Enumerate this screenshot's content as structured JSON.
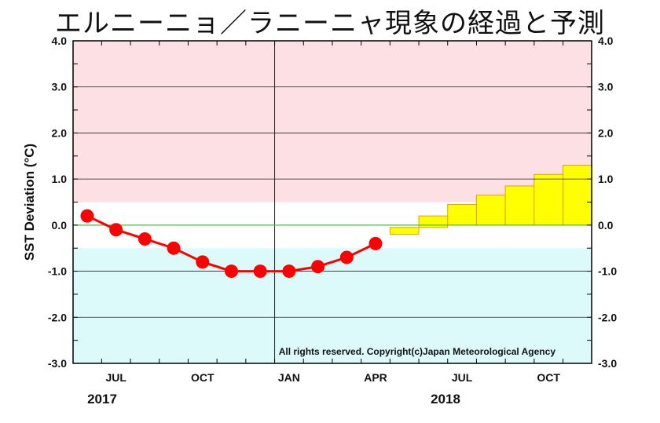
{
  "chart_data": {
    "type": "line",
    "title": "エルニーニョ／ラニーニャ現象の経過と予測",
    "ylabel": "SST Deviation (°C)",
    "ylim": [
      -3.0,
      4.0
    ],
    "yticks": [
      "4.0",
      "3.0",
      "2.0",
      "1.0",
      "0.0",
      "-1.0",
      "-2.0",
      "-3.0"
    ],
    "month_ticks": [
      "JUL",
      "OCT",
      "JAN",
      "APR",
      "JUL",
      "OCT"
    ],
    "years": [
      "2017",
      "2018"
    ],
    "copyright": "All rights reserved. Copyright(c)Japan Meteorological Agency",
    "observed": {
      "months": [
        "2017-06",
        "2017-07",
        "2017-08",
        "2017-09",
        "2017-10",
        "2017-11",
        "2017-12",
        "2018-01",
        "2018-02",
        "2018-03",
        "2018-04"
      ],
      "values": [
        0.2,
        -0.1,
        -0.3,
        -0.5,
        -0.8,
        -1.0,
        -1.0,
        -1.0,
        -0.9,
        -0.7,
        -0.4
      ]
    },
    "forecast": {
      "months": [
        "2018-05",
        "2018-06",
        "2018-07",
        "2018-08",
        "2018-09",
        "2018-10",
        "2018-11"
      ],
      "low": [
        -0.2,
        -0.05,
        0.0,
        0.0,
        0.0,
        0.0,
        0.0
      ],
      "high": [
        -0.05,
        0.2,
        0.45,
        0.65,
        0.85,
        1.1,
        1.3
      ]
    },
    "bands": {
      "el_nino_threshold": 0.5,
      "la_nina_threshold": -0.5
    },
    "colors": {
      "el_nino_band": "#fce0e4",
      "la_nina_band": "#dcfafa",
      "neutral_band": "#ffffff",
      "observed_line": "#ff0000",
      "forecast_box": "#ffff00",
      "forecast_edge": "#e8a000",
      "zero_line": "#33cc33",
      "grid": "#222222"
    }
  }
}
